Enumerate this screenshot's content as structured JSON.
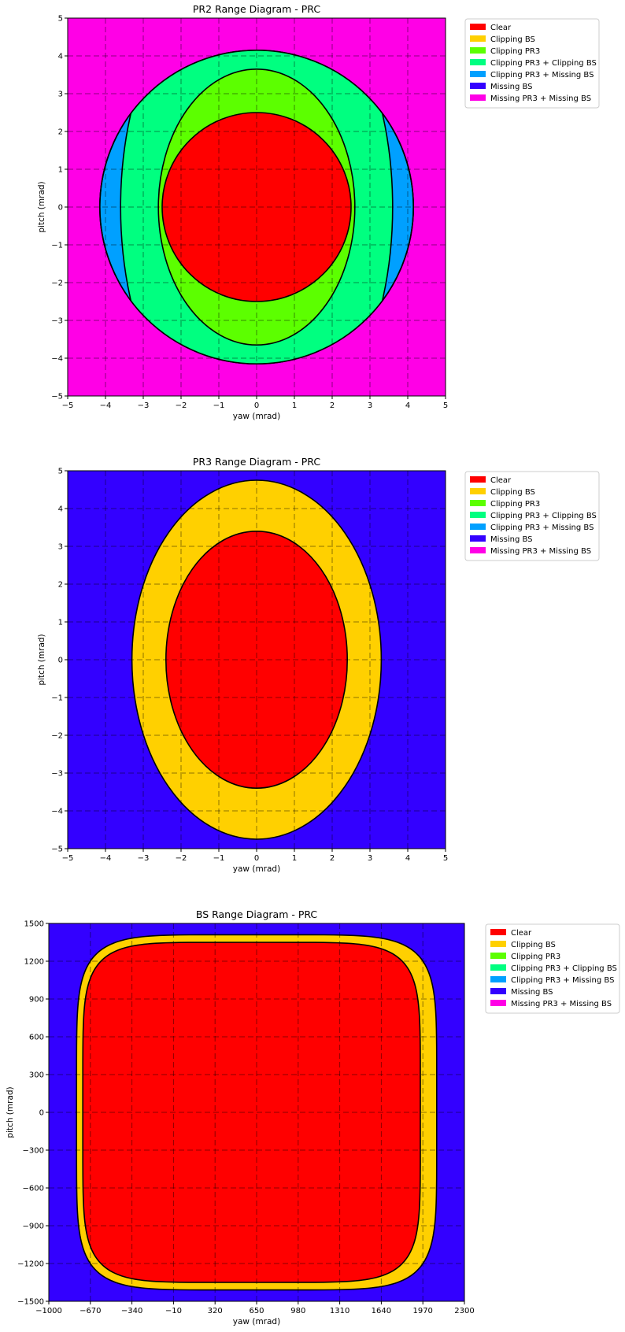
{
  "legend_entries": [
    {
      "label": "Clear",
      "color": "#ff0000"
    },
    {
      "label": "Clipping BS",
      "color": "#ffd000"
    },
    {
      "label": "Clipping PR3",
      "color": "#5cff00"
    },
    {
      "label": "Clipping PR3 + Clipping BS",
      "color": "#00ff80"
    },
    {
      "label": "Clipping PR3 + Missing BS",
      "color": "#00a0ff"
    },
    {
      "label": "Missing BS",
      "color": "#3300ff"
    },
    {
      "label": "Missing PR3 + Missing BS",
      "color": "#ff00e6"
    }
  ],
  "chart_data": [
    {
      "type": "region_diagram",
      "title": "PR2 Range Diagram - PRC",
      "xlabel": "yaw (mrad)",
      "ylabel": "pitch (mrad)",
      "xlim": [
        -5,
        5
      ],
      "ylim": [
        -5,
        5
      ],
      "xticks": [
        -5,
        -4,
        -3,
        -2,
        -1,
        0,
        1,
        2,
        3,
        4,
        5
      ],
      "yticks": [
        -5,
        -4,
        -3,
        -2,
        -1,
        0,
        1,
        2,
        3,
        4,
        5
      ],
      "grid": true,
      "background_region": "Missing PR3 + Missing BS",
      "regions": [
        {
          "name": "Clipping PR3 + Missing BS",
          "shape": "ellipse",
          "center": [
            0,
            0
          ],
          "radii": [
            4.15,
            4.15
          ]
        },
        {
          "name": "Clipping PR3 + Clipping BS",
          "shape": "lens",
          "center": [
            0,
            0
          ],
          "radii": [
            3.6,
            6.5
          ],
          "clip_radius": 4.15
        },
        {
          "name": "Clipping PR3",
          "shape": "ellipse",
          "center": [
            0,
            0
          ],
          "radii": [
            2.6,
            3.65
          ]
        },
        {
          "name": "Clear",
          "shape": "ellipse",
          "center": [
            0,
            0
          ],
          "radii": [
            2.5,
            2.5
          ]
        }
      ]
    },
    {
      "type": "region_diagram",
      "title": "PR3 Range Diagram - PRC",
      "xlabel": "yaw (mrad)",
      "ylabel": "pitch (mrad)",
      "xlim": [
        -5,
        5
      ],
      "ylim": [
        -5,
        5
      ],
      "xticks": [
        -5,
        -4,
        -3,
        -2,
        -1,
        0,
        1,
        2,
        3,
        4,
        5
      ],
      "yticks": [
        -5,
        -4,
        -3,
        -2,
        -1,
        0,
        1,
        2,
        3,
        4,
        5
      ],
      "grid": true,
      "background_region": "Missing BS",
      "regions": [
        {
          "name": "Clipping BS",
          "shape": "ellipse",
          "center": [
            0,
            0
          ],
          "radii": [
            3.3,
            4.75
          ]
        },
        {
          "name": "Clear",
          "shape": "ellipse",
          "center": [
            0,
            0
          ],
          "radii": [
            2.4,
            3.4
          ]
        }
      ]
    },
    {
      "type": "region_diagram",
      "title": "BS Range Diagram - PRC",
      "xlabel": "yaw (mrad)",
      "ylabel": "pitch (mrad)",
      "xlim": [
        -1000,
        2300
      ],
      "ylim": [
        -1500,
        1500
      ],
      "xticks": [
        -1000,
        -670,
        -340,
        -10,
        320,
        650,
        980,
        1310,
        1640,
        1970,
        2300
      ],
      "yticks": [
        -1500,
        -1200,
        -900,
        -600,
        -300,
        0,
        300,
        600,
        900,
        1200,
        1500
      ],
      "grid": true,
      "background_region": "Missing BS",
      "regions": [
        {
          "name": "Clipping BS",
          "shape": "superellipse",
          "center": [
            650,
            0
          ],
          "radii": [
            1430,
            1410
          ],
          "exponent": 6
        },
        {
          "name": "Clear",
          "shape": "superellipse",
          "center": [
            610,
            0
          ],
          "radii": [
            1340,
            1350
          ],
          "exponent": 6
        }
      ]
    }
  ]
}
